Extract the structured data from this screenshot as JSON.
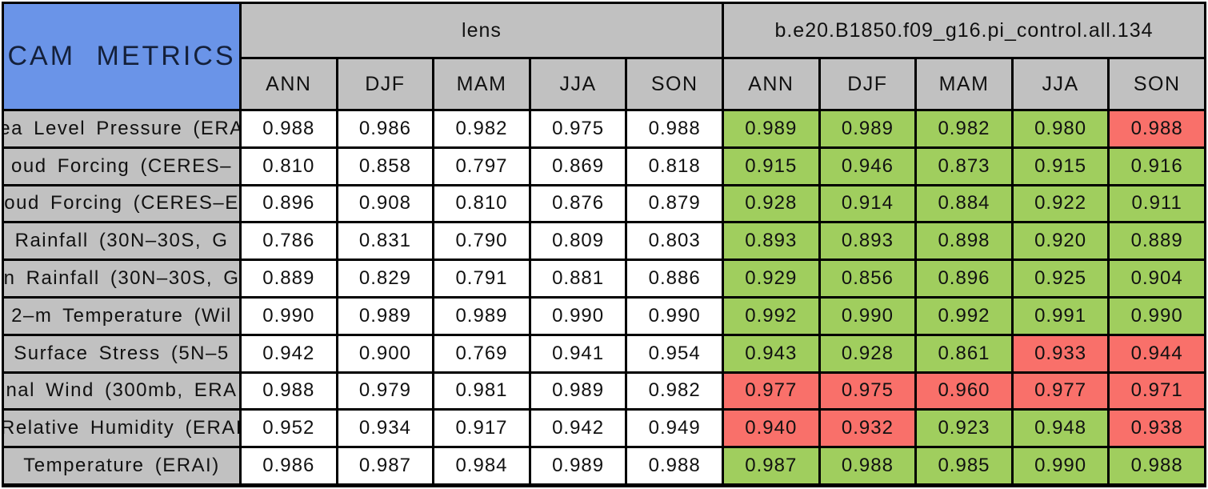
{
  "chart_data": {
    "type": "table",
    "title": "CAM METRICS",
    "column_groups": [
      {
        "label": "lens"
      },
      {
        "label": "b.e20.B1850.f09_g16.pi_control.all.134"
      }
    ],
    "seasons": [
      "ANN",
      "DJF",
      "MAM",
      "JJA",
      "SON"
    ],
    "rows": [
      {
        "label": "ea Level Pressure (ERA",
        "lens": [
          "0.988",
          "0.986",
          "0.982",
          "0.975",
          "0.988"
        ],
        "control": [
          "0.989",
          "0.989",
          "0.982",
          "0.980",
          "0.988"
        ],
        "control_flags": [
          "better",
          "better",
          "better",
          "better",
          "worse"
        ]
      },
      {
        "label": "oud Forcing (CERES–",
        "lens": [
          "0.810",
          "0.858",
          "0.797",
          "0.869",
          "0.818"
        ],
        "control": [
          "0.915",
          "0.946",
          "0.873",
          "0.915",
          "0.916"
        ],
        "control_flags": [
          "better",
          "better",
          "better",
          "better",
          "better"
        ]
      },
      {
        "label": "oud Forcing (CERES–E",
        "lens": [
          "0.896",
          "0.908",
          "0.810",
          "0.876",
          "0.879"
        ],
        "control": [
          "0.928",
          "0.914",
          "0.884",
          "0.922",
          "0.911"
        ],
        "control_flags": [
          "better",
          "better",
          "better",
          "better",
          "better"
        ]
      },
      {
        "label": "Rainfall (30N–30S, G",
        "lens": [
          "0.786",
          "0.831",
          "0.790",
          "0.809",
          "0.803"
        ],
        "control": [
          "0.893",
          "0.893",
          "0.898",
          "0.920",
          "0.889"
        ],
        "control_flags": [
          "better",
          "better",
          "better",
          "better",
          "better"
        ]
      },
      {
        "label": "n Rainfall (30N–30S, G",
        "lens": [
          "0.889",
          "0.829",
          "0.791",
          "0.881",
          "0.886"
        ],
        "control": [
          "0.929",
          "0.856",
          "0.896",
          "0.925",
          "0.904"
        ],
        "control_flags": [
          "better",
          "better",
          "better",
          "better",
          "better"
        ]
      },
      {
        "label": "2–m Temperature (Wil",
        "lens": [
          "0.990",
          "0.989",
          "0.989",
          "0.990",
          "0.990"
        ],
        "control": [
          "0.992",
          "0.990",
          "0.992",
          "0.991",
          "0.990"
        ],
        "control_flags": [
          "better",
          "better",
          "better",
          "better",
          "better"
        ]
      },
      {
        "label": "Surface Stress (5N–5",
        "lens": [
          "0.942",
          "0.900",
          "0.769",
          "0.941",
          "0.954"
        ],
        "control": [
          "0.943",
          "0.928",
          "0.861",
          "0.933",
          "0.944"
        ],
        "control_flags": [
          "better",
          "better",
          "better",
          "worse",
          "worse"
        ]
      },
      {
        "label": "nal Wind (300mb, ERA",
        "lens": [
          "0.988",
          "0.979",
          "0.981",
          "0.989",
          "0.982"
        ],
        "control": [
          "0.977",
          "0.975",
          "0.960",
          "0.977",
          "0.971"
        ],
        "control_flags": [
          "worse",
          "worse",
          "worse",
          "worse",
          "worse"
        ]
      },
      {
        "label": "Relative Humidity (ERAI",
        "lens": [
          "0.952",
          "0.934",
          "0.917",
          "0.942",
          "0.949"
        ],
        "control": [
          "0.940",
          "0.932",
          "0.923",
          "0.948",
          "0.938"
        ],
        "control_flags": [
          "worse",
          "worse",
          "better",
          "better",
          "worse"
        ]
      },
      {
        "label": "Temperature (ERAI)",
        "lens": [
          "0.986",
          "0.987",
          "0.984",
          "0.989",
          "0.988"
        ],
        "control": [
          "0.987",
          "0.988",
          "0.985",
          "0.990",
          "0.988"
        ],
        "control_flags": [
          "better",
          "better",
          "better",
          "better",
          "better"
        ]
      }
    ],
    "layout_hints": {
      "grid": "on",
      "value_cells_lens": "uncolored white",
      "value_cells_control": "green = better than lens, red = worse than lens"
    }
  },
  "colors": {
    "header_blue": "#6a94e8",
    "header_gray": "#c1c1c1",
    "better_green": "#a0ce5e",
    "worse_red": "#f9706a",
    "grid_black": "#000000",
    "cell_white": "#ffffff"
  }
}
